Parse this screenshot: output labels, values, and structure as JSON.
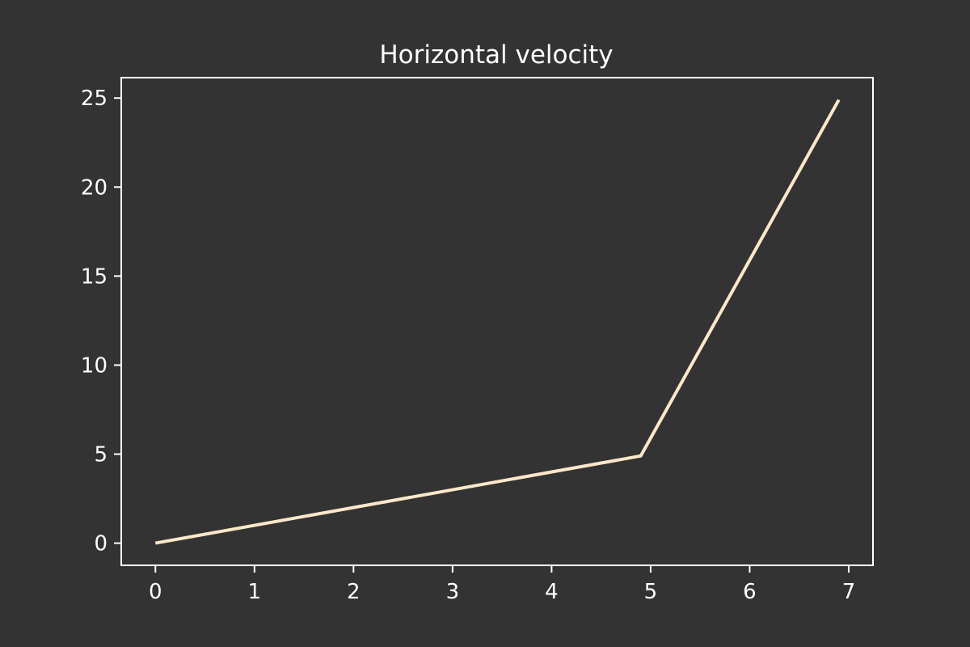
{
  "chart_data": {
    "type": "line",
    "title": "Horizontal velocity",
    "xlabel": "",
    "ylabel": "",
    "x": [
      0,
      4.9,
      6.9
    ],
    "series": [
      {
        "values": [
          0,
          4.9,
          24.9
        ]
      }
    ],
    "xlim": [
      -0.345,
      7.245
    ],
    "ylim": [
      -1.245,
      26.145
    ],
    "xticks": [
      0,
      1,
      2,
      3,
      4,
      5,
      6,
      7
    ],
    "xtick_labels": [
      "0",
      "1",
      "2",
      "3",
      "4",
      "5",
      "6",
      "7"
    ],
    "yticks": [
      0,
      5,
      10,
      15,
      20,
      25
    ],
    "ytick_labels": [
      "0",
      "5",
      "10",
      "15",
      "20",
      "25"
    ],
    "grid": false,
    "colors": {
      "background": "#333333",
      "axes": "#ffffff",
      "line": "#fce8c8",
      "text": "#ffffff"
    }
  }
}
